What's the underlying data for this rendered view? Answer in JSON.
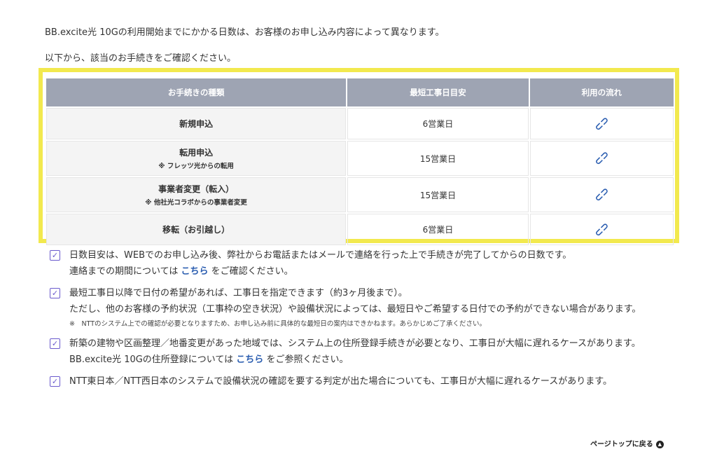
{
  "intro": [
    "BB.excite光 10Gの利用開始までにかかる日数は、お客様のお申し込み内容によって異なります。",
    "以下から、該当のお手続きをご確認ください。"
  ],
  "table": {
    "headers": [
      "お手続きの種類",
      "最短工事日目安",
      "利用の流れ"
    ],
    "rows": [
      {
        "type": "新規申込",
        "sub": "",
        "days": "6営業日",
        "icon": "link-icon"
      },
      {
        "type": "転用申込",
        "sub": "※ フレッツ光からの転用",
        "days": "15営業日",
        "icon": "link-icon"
      },
      {
        "type": "事業者変更（転入）",
        "sub": "※ 他社光コラボからの事業者変更",
        "days": "15営業日",
        "icon": "link-icon"
      },
      {
        "type": "移転（お引越し）",
        "sub": "",
        "days": "6営業日",
        "icon": "link-icon"
      }
    ],
    "highlight_color": "#f2e94e"
  },
  "notes": {
    "n1_a": "日数目安は、WEBでのお申し込み後、弊社からお電話またはメールで連絡を行った上で手続きが完了してからの日数です。",
    "n1_b": "連絡までの期間については ",
    "n1_link": "こちら",
    "n1_c": " をご確認ください。",
    "n2_a": "最短工事日以降で日付の希望があれば、工事日を指定できます（約3ヶ月後まで）。",
    "n2_b": "ただし、他のお客様の予約状況（工事枠の空き状況）や設備状況によっては、最短日やご希望する日付での予約ができない場合があります。",
    "n2_small": "※　NTTのシステム上での確認が必要となりますため、お申し込み前に具体的な最短日の案内はできかねます。あらかじめご了承ください。",
    "n3_a": "新築の建物や区画整理／地番変更があった地域では、システム上の住所登録手続きが必要となり、工事日が大幅に遅れるケースがあります。",
    "n3_b": "BB.excite光 10Gの住所登録については ",
    "n3_link": "こちら",
    "n3_c": " をご参照ください。",
    "n4": "NTT東日本／NTT西日本のシステムで設備状況の確認を要する判定が出た場合についても、工事日が大幅に遅れるケースがあります。"
  },
  "pagetop": "ページトップに戻る",
  "accent": "#2a5db0",
  "checkbox_color": "#6a5acd"
}
